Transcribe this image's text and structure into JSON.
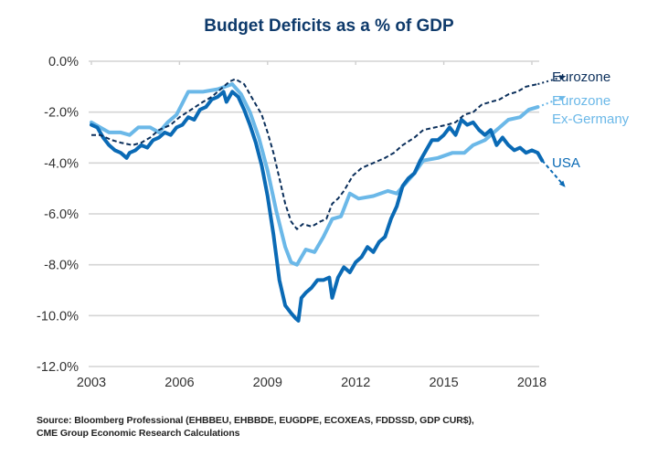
{
  "chart_data": {
    "type": "line",
    "title": "Budget Deficits as a % of GDP",
    "xlabel": "",
    "ylabel": "",
    "xlim": [
      2003,
      2018.3
    ],
    "ylim": [
      -12,
      0
    ],
    "x_ticks": [
      2003,
      2006,
      2009,
      2012,
      2015,
      2018
    ],
    "x_tick_labels": [
      "2003",
      "2006",
      "2009",
      "2012",
      "2015",
      "2018"
    ],
    "y_ticks": [
      0,
      -2,
      -4,
      -6,
      -8,
      -10,
      -12
    ],
    "y_tick_labels": [
      "0.0%",
      "-2.0%",
      "-4.0%",
      "-6.0%",
      "-8.0%",
      "-10.0%",
      "-12.0%"
    ],
    "grid": "horizontal",
    "legend": "right (inline labels at line ends)",
    "series": [
      {
        "name": "Eurozone",
        "color": "#0b2f5b",
        "style": "dashed",
        "x": [
          2003.0,
          2003.3,
          2003.7,
          2004.0,
          2004.4,
          2004.7,
          2005.0,
          2005.3,
          2005.7,
          2006.0,
          2006.4,
          2006.8,
          2007.1,
          2007.4,
          2007.7,
          2007.9,
          2008.2,
          2008.5,
          2008.8,
          2009.0,
          2009.2,
          2009.4,
          2009.6,
          2009.8,
          2010.0,
          2010.2,
          2010.5,
          2010.8,
          2011.0,
          2011.2,
          2011.4,
          2011.6,
          2011.9,
          2012.2,
          2012.6,
          2013.0,
          2013.3,
          2013.6,
          2014.0,
          2014.3,
          2014.7,
          2015.1,
          2015.4,
          2015.7,
          2016.0,
          2016.3,
          2016.6,
          2016.9,
          2017.2,
          2017.5,
          2017.8,
          2018.2
        ],
        "values": [
          -2.9,
          -2.9,
          -3.1,
          -3.2,
          -3.3,
          -3.2,
          -3.0,
          -2.7,
          -2.5,
          -2.2,
          -1.9,
          -1.6,
          -1.4,
          -1.1,
          -0.8,
          -0.7,
          -0.9,
          -1.5,
          -2.1,
          -2.8,
          -3.6,
          -4.6,
          -5.6,
          -6.3,
          -6.6,
          -6.4,
          -6.5,
          -6.3,
          -6.2,
          -5.6,
          -5.4,
          -5.1,
          -4.5,
          -4.2,
          -4.0,
          -3.8,
          -3.6,
          -3.3,
          -3.0,
          -2.7,
          -2.6,
          -2.5,
          -2.4,
          -2.1,
          -2.0,
          -1.7,
          -1.6,
          -1.5,
          -1.3,
          -1.2,
          -1.0,
          -0.9
        ],
        "projection": {
          "x": [
            2018.2,
            2019.1
          ],
          "values": [
            -0.9,
            -0.6
          ]
        }
      },
      {
        "name": "Eurozone Ex-Germany",
        "color": "#6bb8e8",
        "style": "solid",
        "x": [
          2003.0,
          2003.3,
          2003.6,
          2004.0,
          2004.3,
          2004.6,
          2005.0,
          2005.3,
          2005.6,
          2005.9,
          2006.3,
          2006.8,
          2007.3,
          2007.8,
          2008.1,
          2008.4,
          2008.7,
          2009.0,
          2009.3,
          2009.6,
          2009.8,
          2010.0,
          2010.3,
          2010.6,
          2010.9,
          2011.2,
          2011.5,
          2011.8,
          2012.1,
          2012.6,
          2013.1,
          2013.4,
          2013.7,
          2014.0,
          2014.3,
          2014.8,
          2015.3,
          2015.7,
          2016.0,
          2016.4,
          2016.9,
          2017.2,
          2017.6,
          2017.9,
          2018.2
        ],
        "values": [
          -2.4,
          -2.6,
          -2.8,
          -2.8,
          -2.9,
          -2.6,
          -2.6,
          -2.8,
          -2.4,
          -2.1,
          -1.2,
          -1.2,
          -1.1,
          -0.9,
          -1.3,
          -2.0,
          -3.0,
          -4.3,
          -5.9,
          -7.3,
          -7.9,
          -8.0,
          -7.4,
          -7.5,
          -6.9,
          -6.2,
          -6.1,
          -5.2,
          -5.4,
          -5.3,
          -5.1,
          -5.2,
          -4.8,
          -4.4,
          -3.9,
          -3.8,
          -3.6,
          -3.6,
          -3.3,
          -3.1,
          -2.6,
          -2.3,
          -2.2,
          -1.9,
          -1.8
        ],
        "projection": {
          "x": [
            2018.2,
            2019.1
          ],
          "values": [
            -1.8,
            -1.4
          ]
        }
      },
      {
        "name": "USA",
        "color": "#0a6ab5",
        "style": "solid",
        "x": [
          2003.0,
          2003.2,
          2003.4,
          2003.6,
          2003.8,
          2004.0,
          2004.2,
          2004.3,
          2004.5,
          2004.7,
          2004.9,
          2005.1,
          2005.3,
          2005.5,
          2005.7,
          2005.9,
          2006.1,
          2006.3,
          2006.5,
          2006.7,
          2006.9,
          2007.1,
          2007.3,
          2007.5,
          2007.6,
          2007.8,
          2008.0,
          2008.2,
          2008.4,
          2008.6,
          2008.8,
          2009.0,
          2009.2,
          2009.4,
          2009.6,
          2009.8,
          2009.95,
          2010.05,
          2010.15,
          2010.3,
          2010.5,
          2010.7,
          2010.9,
          2011.1,
          2011.2,
          2011.4,
          2011.6,
          2011.8,
          2012.0,
          2012.2,
          2012.4,
          2012.6,
          2012.8,
          2013.0,
          2013.2,
          2013.4,
          2013.6,
          2013.8,
          2014.0,
          2014.2,
          2014.4,
          2014.6,
          2014.8,
          2015.0,
          2015.2,
          2015.4,
          2015.6,
          2015.8,
          2016.0,
          2016.2,
          2016.4,
          2016.6,
          2016.8,
          2017.0,
          2017.2,
          2017.4,
          2017.6,
          2017.8,
          2018.0,
          2018.2,
          2018.35
        ],
        "values": [
          -2.5,
          -2.6,
          -3.0,
          -3.3,
          -3.5,
          -3.6,
          -3.8,
          -3.6,
          -3.5,
          -3.3,
          -3.4,
          -3.1,
          -3.0,
          -2.8,
          -2.9,
          -2.6,
          -2.5,
          -2.2,
          -2.3,
          -1.9,
          -1.8,
          -1.5,
          -1.4,
          -1.2,
          -1.6,
          -1.2,
          -1.4,
          -1.9,
          -2.5,
          -3.2,
          -4.1,
          -5.3,
          -6.8,
          -8.6,
          -9.6,
          -9.9,
          -10.1,
          -10.2,
          -9.3,
          -9.1,
          -8.9,
          -8.6,
          -8.6,
          -8.5,
          -9.3,
          -8.5,
          -8.1,
          -8.3,
          -7.9,
          -7.7,
          -7.3,
          -7.5,
          -7.1,
          -6.9,
          -6.2,
          -5.7,
          -4.9,
          -4.6,
          -4.4,
          -3.9,
          -3.5,
          -3.1,
          -3.1,
          -2.9,
          -2.6,
          -2.9,
          -2.3,
          -2.5,
          -2.4,
          -2.7,
          -2.9,
          -2.7,
          -3.3,
          -3.0,
          -3.3,
          -3.5,
          -3.4,
          -3.6,
          -3.5,
          -3.6,
          -3.9
        ],
        "projection": {
          "x": [
            2018.35,
            2019.1
          ],
          "values": [
            -3.9,
            -4.9
          ]
        }
      }
    ]
  },
  "title": "Budget Deficits as a % of GDP",
  "legend_labels": {
    "eurozone": "Eurozone",
    "eurozone_ex_germany_line1": "Eurozone",
    "eurozone_ex_germany_line2": "Ex-Germany",
    "usa": "USA"
  },
  "source": {
    "line1": "Source: Bloomberg Professional (EHBBEU, EHBBDE, EUGDPE, ECOXEAS, FDDSSD, GDP CUR$),",
    "line2": "CME Group Economic Research Calculations"
  }
}
